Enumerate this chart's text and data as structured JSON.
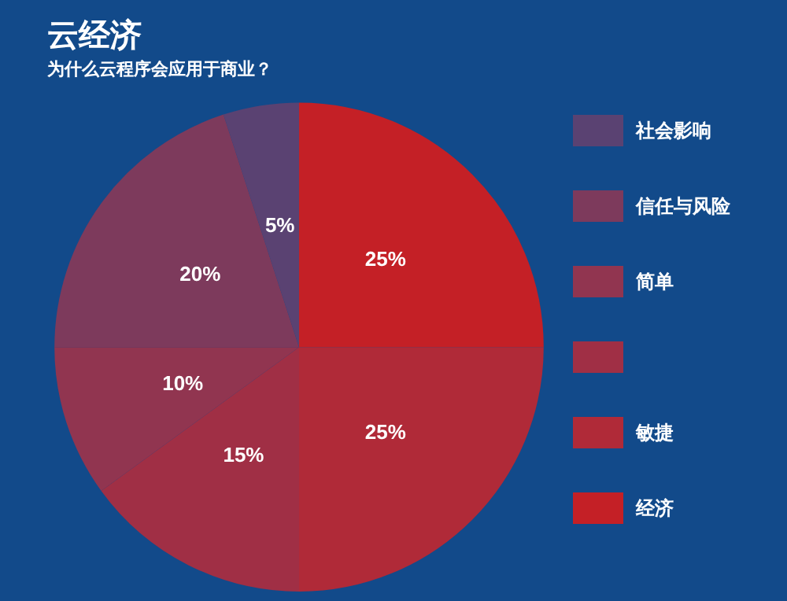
{
  "chart_data": {
    "type": "pie",
    "title": "云经济",
    "subtitle": "为什么云程序会应用于商业？",
    "categories": [
      "经济",
      "敏捷",
      null,
      "简单",
      "信任与风险",
      "社会影响"
    ],
    "values": [
      25,
      25,
      15,
      10,
      20,
      5
    ],
    "value_labels": [
      "25%",
      "25%",
      "15%",
      "10%",
      "20%",
      "5%"
    ],
    "colors": [
      "#c42026",
      "#b02a38",
      "#a02f45",
      "#913550",
      "#7d3a5c",
      "#5a4272"
    ],
    "legend": "right"
  }
}
